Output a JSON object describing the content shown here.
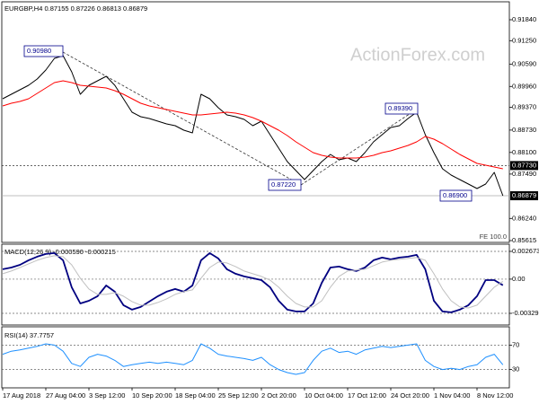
{
  "chart_data": [
    {
      "type": "line",
      "title": "EURGBP,H4  0.87155 0.87226 0.86813 0.86879",
      "watermark": "ActionForex.com",
      "annotations": [
        "0.90980",
        "0.87220",
        "0.89390",
        "0.86900",
        "FE 100.0"
      ],
      "categories": [
        "17 Aug 2018",
        null,
        null,
        null,
        null,
        "27 Aug 04:00",
        null,
        null,
        null,
        null,
        "3 Sep 12:00",
        null,
        null,
        null,
        null,
        "10 Sep 20:00",
        null,
        null,
        null,
        null,
        "18 Sep 04:00",
        null,
        null,
        null,
        null,
        "25 Sep 12:00",
        null,
        null,
        null,
        null,
        "2 Oct 20:00",
        null,
        null,
        null,
        null,
        "10 Oct 04:00",
        null,
        null,
        null,
        null,
        "17 Oct 12:00",
        null,
        null,
        null,
        null,
        "24 Oct 20:00",
        null,
        null,
        null,
        null,
        "1 Nov 04:00",
        null,
        null,
        null,
        null,
        "8 Nov 12:00",
        null,
        null,
        null
      ],
      "series": [
        {
          "color": "#000000",
          "values": [
            0.89613,
            0.8974,
            0.89866,
            0.89993,
            0.9017,
            0.90423,
            0.90752,
            0.90828,
            0.90372,
            0.8974,
            0.89993,
            0.90119,
            0.90246,
            0.89993,
            0.89613,
            0.89234,
            0.89107,
            0.89057,
            0.88981,
            0.88905,
            0.88854,
            0.88728,
            0.88652,
            0.8974,
            0.89613,
            0.8936,
            0.89158,
            0.89107,
            0.89031,
            0.88854,
            0.88981,
            0.88601,
            0.88222,
            0.87842,
            0.87589,
            0.87336,
            0.87589,
            0.87842,
            0.88044,
            0.87893,
            0.87943,
            0.87842,
            0.88095,
            0.88399,
            0.88601,
            0.88804,
            0.88854,
            0.89057,
            0.89234,
            0.88601,
            0.88095,
            0.8764,
            0.87462,
            0.87336,
            0.87209,
            0.87083,
            0.87209,
            0.87538,
            0.86879
          ]
        },
        {
          "color": "#ff0000",
          "values": [
            0.89411,
            0.89487,
            0.89537,
            0.89613,
            0.89765,
            0.89917,
            0.90069,
            0.90119,
            0.90069,
            0.89993,
            0.89968,
            0.89942,
            0.89917,
            0.89841,
            0.8974,
            0.89613,
            0.89487,
            0.89411,
            0.8936,
            0.8931,
            0.89259,
            0.89208,
            0.89158,
            0.89158,
            0.89183,
            0.89208,
            0.89234,
            0.89208,
            0.89158,
            0.89082,
            0.88981,
            0.88854,
            0.88728,
            0.88576,
            0.88399,
            0.88247,
            0.88095,
            0.88019,
            0.87968,
            0.87943,
            0.87943,
            0.87943,
            0.87968,
            0.88019,
            0.88095,
            0.88146,
            0.88222,
            0.88297,
            0.88399,
            0.8855,
            0.88475,
            0.88348,
            0.88196,
            0.88044,
            0.87918,
            0.87791,
            0.87741,
            0.8769,
            0.8764
          ]
        }
      ],
      "ylim": [
        0.85564,
        0.92346
      ],
      "yticks": [
        {
          "value": 0.9184,
          "label": "0.91840"
        },
        {
          "value": 0.9125,
          "label": "0.91250"
        },
        {
          "value": 0.9059,
          "label": "0.90590"
        },
        {
          "value": 0.8996,
          "label": "0.89960"
        },
        {
          "value": 0.8937,
          "label": "0.89370"
        },
        {
          "value": 0.8873,
          "label": "0.88730"
        },
        {
          "value": 0.881,
          "label": "0.88100"
        },
        {
          "value": 0.8749,
          "label": "0.87490"
        },
        {
          "value": 0.8624,
          "label": "0.86240"
        },
        0.85615
      ],
      "levels": [
        {
          "value": 0.8773,
          "label": "0.87730"
        },
        {
          "value": 0.86879,
          "label": "0.86879"
        }
      ],
      "grid": false
    },
    {
      "type": "line",
      "title": "MACD(12,26,9) -0.000590 -0.000215",
      "series": [
        {
          "color": "#000080",
          "values": [
            0.00095,
            0.00112,
            0.00138,
            0.00182,
            0.00216,
            0.00242,
            0.00251,
            0.00182,
            -0.00078,
            -0.00234,
            -0.00208,
            -0.00164,
            -0.00061,
            -0.00121,
            -0.00251,
            -0.00294,
            -0.00268,
            -0.00216,
            -0.00164,
            -0.00121,
            -0.00095,
            -0.00121,
            -0.00061,
            0.00182,
            0.00251,
            0.00199,
            0.00095,
            0.00052,
            0.00026,
            9e-05,
            -9e-05,
            -0.00078,
            -0.00208,
            -0.00294,
            -0.00311,
            -0.00311,
            -0.00234,
            -0.00035,
            0.00112,
            0.00121,
            0.00095,
            0.00078,
            0.00112,
            0.00182,
            0.00208,
            0.0019,
            0.00208,
            0.00216,
            0.00234,
            0.00095,
            -0.00208,
            -0.00311,
            -0.0032,
            -0.00294,
            -0.00251,
            -0.00164,
            -9e-05,
            -9e-05,
            -0.00059
          ]
        },
        {
          "color": "#c0c0c0",
          "values": [
            0.00052,
            0.00078,
            0.00112,
            0.00147,
            0.00182,
            0.00208,
            0.00225,
            0.00216,
            0.00138,
            9e-05,
            -0.00095,
            -0.00147,
            -0.00147,
            -0.0013,
            -0.00164,
            -0.00216,
            -0.00251,
            -0.00251,
            -0.00225,
            -0.0019,
            -0.00147,
            -0.00121,
            -0.00104,
            9e-05,
            0.00112,
            0.00164,
            0.00156,
            0.00121,
            0.00078,
            0.00052,
            0.00026,
            -9e-05,
            -0.00078,
            -0.00164,
            -0.00234,
            -0.00268,
            -0.00268,
            -0.00208,
            -0.00078,
            0.00026,
            0.00078,
            0.00087,
            0.00095,
            0.0013,
            0.00164,
            0.00182,
            0.0019,
            0.00199,
            0.00208,
            0.00182,
            0.00052,
            -0.00095,
            -0.00208,
            -0.00268,
            -0.00277,
            -0.00251,
            -0.00164,
            -0.00078,
            -0.000215
          ]
        }
      ],
      "ylim": [
        -0.004417,
        0.003365
      ],
      "yticks": [
        0.002673,
        {
          "value": 0,
          "label": "0.00"
        },
        -0.003293
      ],
      "grid": true
    },
    {
      "type": "line",
      "title": "RSI(14) 37.7757",
      "series": [
        {
          "color": "#1e90ff",
          "values": [
            55,
            60,
            62,
            65,
            68,
            72,
            70,
            60,
            40,
            35,
            50,
            55,
            52,
            45,
            35,
            38,
            40,
            42,
            40,
            42,
            40,
            38,
            45,
            72,
            65,
            55,
            52,
            50,
            48,
            45,
            50,
            38,
            30,
            25,
            22,
            25,
            45,
            60,
            65,
            58,
            60,
            55,
            62,
            65,
            68,
            66,
            68,
            70,
            72,
            45,
            35,
            30,
            32,
            30,
            35,
            38,
            50,
            55,
            37.7757
          ]
        }
      ],
      "ylim": [
        0,
        100
      ],
      "yticks": [
        70,
        30
      ],
      "grid": true
    }
  ]
}
